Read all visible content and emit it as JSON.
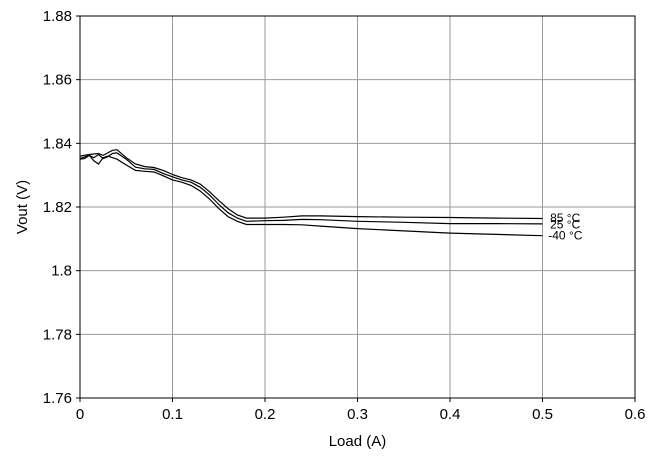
{
  "chart_data": {
    "type": "line",
    "xlabel": "Load (A)",
    "ylabel": "Vout (V)",
    "xlim": [
      0,
      0.6
    ],
    "ylim": [
      1.76,
      1.88
    ],
    "xticks": [
      "0",
      "0.1",
      "0.2",
      "0.3",
      "0.4",
      "0.5",
      "0.6"
    ],
    "yticks": [
      "1.76",
      "1.78",
      "1.8",
      "1.82",
      "1.84",
      "1.86",
      "1.88"
    ],
    "grid": true,
    "series": [
      {
        "name": "85 °C",
        "x": [
          0,
          0.01,
          0.02,
          0.025,
          0.03,
          0.035,
          0.04,
          0.05,
          0.06,
          0.07,
          0.08,
          0.09,
          0.1,
          0.11,
          0.12,
          0.13,
          0.14,
          0.15,
          0.16,
          0.17,
          0.18,
          0.2,
          0.22,
          0.24,
          0.26,
          0.3,
          0.35,
          0.4,
          0.45,
          0.5
        ],
        "y": [
          1.836,
          1.8365,
          1.8368,
          1.8362,
          1.837,
          1.8378,
          1.838,
          1.8355,
          1.8335,
          1.8327,
          1.8324,
          1.8315,
          1.8302,
          1.8292,
          1.8285,
          1.8272,
          1.8248,
          1.822,
          1.8195,
          1.8175,
          1.8165,
          1.8165,
          1.8168,
          1.8172,
          1.8172,
          1.817,
          1.8168,
          1.8167,
          1.8165,
          1.8164
        ]
      },
      {
        "name": "25 °C",
        "x": [
          0,
          0.01,
          0.015,
          0.02,
          0.025,
          0.03,
          0.035,
          0.04,
          0.05,
          0.06,
          0.07,
          0.08,
          0.09,
          0.1,
          0.11,
          0.12,
          0.13,
          0.14,
          0.15,
          0.16,
          0.17,
          0.18,
          0.2,
          0.22,
          0.24,
          0.26,
          0.3,
          0.35,
          0.4,
          0.45,
          0.5
        ],
        "y": [
          1.8352,
          1.8362,
          1.8355,
          1.8365,
          1.8352,
          1.8358,
          1.8368,
          1.837,
          1.835,
          1.8325,
          1.832,
          1.8318,
          1.8305,
          1.8295,
          1.8285,
          1.8278,
          1.8262,
          1.8238,
          1.8208,
          1.8182,
          1.8165,
          1.8155,
          1.8157,
          1.8158,
          1.8161,
          1.816,
          1.8155,
          1.8152,
          1.8148,
          1.8148,
          1.8147
        ]
      },
      {
        "name": "-40 °C",
        "x": [
          0,
          0.005,
          0.01,
          0.015,
          0.02,
          0.025,
          0.03,
          0.04,
          0.05,
          0.06,
          0.07,
          0.08,
          0.09,
          0.1,
          0.11,
          0.12,
          0.13,
          0.14,
          0.15,
          0.16,
          0.17,
          0.18,
          0.2,
          0.22,
          0.24,
          0.26,
          0.3,
          0.35,
          0.4,
          0.45,
          0.5
        ],
        "y": [
          1.835,
          1.8352,
          1.8362,
          1.8345,
          1.8335,
          1.8355,
          1.836,
          1.835,
          1.8332,
          1.8315,
          1.8312,
          1.831,
          1.8298,
          1.8285,
          1.8278,
          1.8268,
          1.825,
          1.8225,
          1.8195,
          1.817,
          1.8155,
          1.8145,
          1.8145,
          1.8145,
          1.8144,
          1.814,
          1.8132,
          1.8125,
          1.8118,
          1.8114,
          1.811
        ]
      }
    ],
    "annotations": [
      {
        "text": "85 °C",
        "x": 0.505,
        "y": 1.8165
      },
      {
        "text": "25 °C",
        "x": 0.505,
        "y": 1.8145
      },
      {
        "text": "-40 °C",
        "x": 0.503,
        "y": 1.811
      }
    ]
  }
}
